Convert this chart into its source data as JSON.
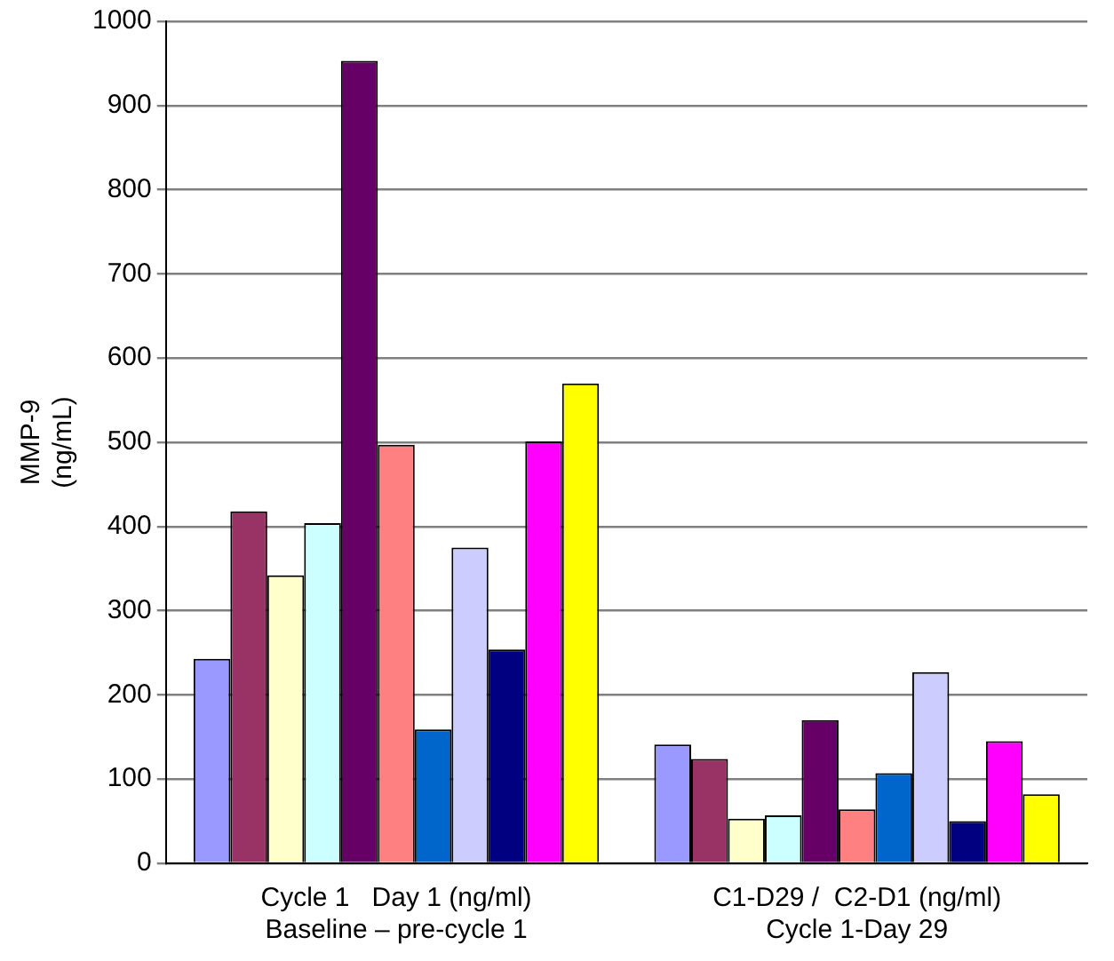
{
  "chart_data": {
    "type": "bar",
    "ylabel": "MMP-9\n(ng/mL)",
    "categories": [
      "Cycle 1   Day 1 (ng/ml)\nBaseline – pre-cycle 1",
      "C1-D29 /  C2-D1 (ng/ml)\nCycle 1-Day 29"
    ],
    "series": [
      {
        "color": "#9999ff",
        "values": [
          243,
          141
        ]
      },
      {
        "color": "#993366",
        "values": [
          418,
          124
        ]
      },
      {
        "color": "#ffffcc",
        "values": [
          342,
          53
        ]
      },
      {
        "color": "#ccffff",
        "values": [
          404,
          57
        ]
      },
      {
        "color": "#660066",
        "values": [
          953,
          170
        ]
      },
      {
        "color": "#ff8080",
        "values": [
          497,
          64
        ]
      },
      {
        "color": "#0066cc",
        "values": [
          159,
          107
        ]
      },
      {
        "color": "#ccccff",
        "values": [
          375,
          227
        ]
      },
      {
        "color": "#000080",
        "values": [
          254,
          50
        ]
      },
      {
        "color": "#ff00ff",
        "values": [
          501,
          145
        ]
      },
      {
        "color": "#ffff00",
        "values": [
          570,
          82
        ]
      }
    ],
    "ylim": [
      0,
      1000
    ],
    "yticks": [
      0,
      100,
      200,
      300,
      400,
      500,
      600,
      700,
      800,
      900,
      1000
    ],
    "grid": "y",
    "legend": false
  }
}
